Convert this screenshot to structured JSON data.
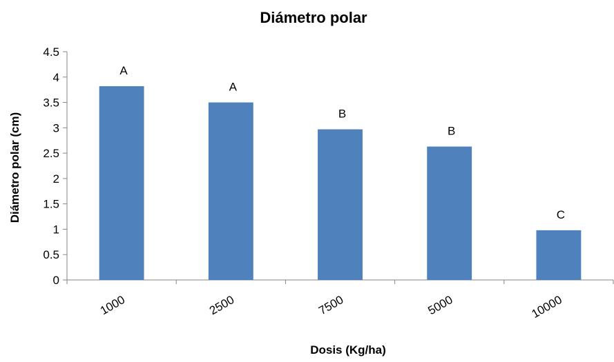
{
  "chart_data": {
    "type": "bar",
    "title": "Diámetro polar",
    "xlabel": "Dosis (Kg/ha)",
    "ylabel": "Diámetro polar (cm)",
    "categories": [
      "1000",
      "2500",
      "7500",
      "5000",
      "10000"
    ],
    "values": [
      3.82,
      3.5,
      2.97,
      2.63,
      0.98
    ],
    "data_labels": [
      "A",
      "A",
      "B",
      "B",
      "C"
    ],
    "ylim": [
      0,
      4.5
    ],
    "yticks": [
      "0",
      "0.5",
      "1",
      "1.5",
      "2",
      "2.5",
      "3",
      "3.5",
      "4",
      "4.5"
    ],
    "grid": false,
    "legend": "none",
    "bar_color": "#4f81bd",
    "axis_color": "#868686"
  }
}
